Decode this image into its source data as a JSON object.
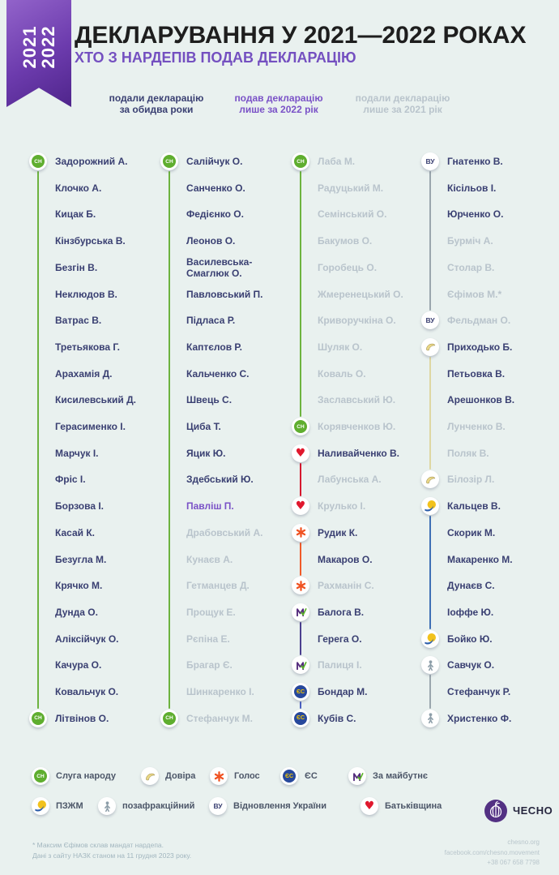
{
  "header": {
    "ribbon": "2021\n2022",
    "title": "ДЕКЛАРУВАННЯ У 2021—2022 РОКАХ",
    "subtitle": "ХТО З НАРДЕПІВ ПОДАВ ДЕКЛАРАЦІЮ"
  },
  "categories": [
    {
      "id": "both",
      "label": "подали декларацію\nза обидва роки",
      "color": "#3a4072"
    },
    {
      "id": "only2022",
      "label": "подав декларацію\nлише за 2022 рік",
      "color": "#7a52c7"
    },
    {
      "id": "only2021",
      "label": "подали декларацію\nлише за 2021 рік",
      "color": "#b9c4cc"
    }
  ],
  "status_colors": {
    "both": "#3a4072",
    "only2022": "#7a52c7",
    "only2021": "#b9c4cc"
  },
  "party_colors": {
    "sn": "#6db33f",
    "batkivshchyna": "#d6182e",
    "holos": "#f05a28",
    "maibutne": "#4b3f8f",
    "es": "#4a5fc1",
    "vu": "#9aa6ad",
    "dovira": "#ded7a2",
    "pzhm": "#3f6fb5",
    "nonfaction": "#9aa6ad"
  },
  "columns": [
    {
      "entries": [
        {
          "n": "Задорожний А.",
          "s": "both",
          "i": "sn"
        },
        {
          "n": "Клочко А.",
          "s": "both"
        },
        {
          "n": "Кицак Б.",
          "s": "both"
        },
        {
          "n": "Кінзбурська В.",
          "s": "both"
        },
        {
          "n": "Безгін В.",
          "s": "both"
        },
        {
          "n": "Неклюдов В.",
          "s": "both"
        },
        {
          "n": "Ватрас В.",
          "s": "both"
        },
        {
          "n": "Третьякова Г.",
          "s": "both"
        },
        {
          "n": "Арахамія Д.",
          "s": "both"
        },
        {
          "n": "Кисилевський Д.",
          "s": "both"
        },
        {
          "n": "Герасименко І.",
          "s": "both"
        },
        {
          "n": "Марчук І.",
          "s": "both"
        },
        {
          "n": "Фріс І.",
          "s": "both"
        },
        {
          "n": "Борзова І.",
          "s": "both"
        },
        {
          "n": "Касай К.",
          "s": "both"
        },
        {
          "n": "Безугла М.",
          "s": "both"
        },
        {
          "n": "Крячко М.",
          "s": "both"
        },
        {
          "n": "Дунда О.",
          "s": "both"
        },
        {
          "n": "Аліксійчук О.",
          "s": "both"
        },
        {
          "n": "Качура О.",
          "s": "both"
        },
        {
          "n": "Ковальчук О.",
          "s": "both"
        },
        {
          "n": "Літвінов О.",
          "s": "both",
          "i": "sn"
        }
      ],
      "segments": [
        {
          "party": "sn",
          "from": 0,
          "to": 21
        }
      ]
    },
    {
      "entries": [
        {
          "n": "Салійчук О.",
          "s": "both",
          "i": "sn"
        },
        {
          "n": "Санченко О.",
          "s": "both"
        },
        {
          "n": "Федієнко О.",
          "s": "both"
        },
        {
          "n": "Леонов О.",
          "s": "both"
        },
        {
          "n": "Василевська-\nСмаглюк О.",
          "s": "both"
        },
        {
          "n": "Павловський П.",
          "s": "both"
        },
        {
          "n": "Підласа Р.",
          "s": "both"
        },
        {
          "n": "Каптєлов Р.",
          "s": "both"
        },
        {
          "n": "Кальченко С.",
          "s": "both"
        },
        {
          "n": "Швець С.",
          "s": "both"
        },
        {
          "n": "Циба Т.",
          "s": "both"
        },
        {
          "n": "Яцик Ю.",
          "s": "both"
        },
        {
          "n": "Здебський Ю.",
          "s": "both"
        },
        {
          "n": "Павліш П.",
          "s": "only2022"
        },
        {
          "n": "Драбовський А.",
          "s": "only2021"
        },
        {
          "n": "Кунаєв А.",
          "s": "only2021"
        },
        {
          "n": "Гетманцев Д.",
          "s": "only2021"
        },
        {
          "n": "Прощук Е.",
          "s": "only2021"
        },
        {
          "n": "Рєпіна Е.",
          "s": "only2021"
        },
        {
          "n": "Брагар Є.",
          "s": "only2021"
        },
        {
          "n": "Шинкаренко І.",
          "s": "only2021"
        },
        {
          "n": "Стефанчук М.",
          "s": "only2021",
          "i": "sn"
        }
      ],
      "segments": [
        {
          "party": "sn",
          "from": 0,
          "to": 21
        }
      ]
    },
    {
      "entries": [
        {
          "n": "Лаба М.",
          "s": "only2021",
          "i": "sn"
        },
        {
          "n": "Радуцький М.",
          "s": "only2021"
        },
        {
          "n": "Семінський О.",
          "s": "only2021"
        },
        {
          "n": "Бакумов О.",
          "s": "only2021"
        },
        {
          "n": "Горобець О.",
          "s": "only2021"
        },
        {
          "n": "Жмеренецький О.",
          "s": "only2021"
        },
        {
          "n": "Криворучкіна О.",
          "s": "only2021"
        },
        {
          "n": "Шуляк О.",
          "s": "only2021"
        },
        {
          "n": "Коваль О.",
          "s": "only2021"
        },
        {
          "n": "Заславський Ю.",
          "s": "only2021"
        },
        {
          "n": "Корявченков Ю.",
          "s": "only2021",
          "i": "sn"
        },
        {
          "n": "Наливайченко В.",
          "s": "both",
          "i": "batkivshchyna"
        },
        {
          "n": "Лабунська А.",
          "s": "only2021"
        },
        {
          "n": "Крулько І.",
          "s": "only2021",
          "i": "batkivshchyna"
        },
        {
          "n": "Рудик К.",
          "s": "both",
          "i": "holos"
        },
        {
          "n": "Макаров О.",
          "s": "both"
        },
        {
          "n": "Рахманін С.",
          "s": "only2021",
          "i": "holos"
        },
        {
          "n": "Балога В.",
          "s": "both",
          "i": "maibutne"
        },
        {
          "n": "Герега О.",
          "s": "both"
        },
        {
          "n": "Палиця І.",
          "s": "only2021",
          "i": "maibutne"
        },
        {
          "n": "Бондар М.",
          "s": "both",
          "i": "es"
        },
        {
          "n": "Кубів С.",
          "s": "both",
          "i": "es"
        }
      ],
      "segments": [
        {
          "party": "sn",
          "from": 0,
          "to": 10
        },
        {
          "party": "batkivshchyna",
          "from": 11,
          "to": 13
        },
        {
          "party": "holos",
          "from": 14,
          "to": 16
        },
        {
          "party": "maibutne",
          "from": 17,
          "to": 19
        },
        {
          "party": "es",
          "from": 20,
          "to": 21
        }
      ]
    },
    {
      "entries": [
        {
          "n": "Гнатенко В.",
          "s": "both",
          "i": "vu"
        },
        {
          "n": "Кісільов І.",
          "s": "both"
        },
        {
          "n": "Юрченко О.",
          "s": "both"
        },
        {
          "n": "Бурміч А.",
          "s": "only2021"
        },
        {
          "n": "Столар В.",
          "s": "only2021"
        },
        {
          "n": "Єфімов М.*",
          "s": "only2021"
        },
        {
          "n": "Фельдман О.",
          "s": "only2021",
          "i": "vu"
        },
        {
          "n": "Приходько Б.",
          "s": "both",
          "i": "dovira"
        },
        {
          "n": "Петьовка В.",
          "s": "both"
        },
        {
          "n": "Арешонков В.",
          "s": "both"
        },
        {
          "n": "Лунченко В.",
          "s": "only2021"
        },
        {
          "n": "Поляк В.",
          "s": "only2021"
        },
        {
          "n": "Білозір Л.",
          "s": "only2021",
          "i": "dovira"
        },
        {
          "n": "Кальцев В.",
          "s": "both",
          "i": "pzhm"
        },
        {
          "n": "Скорик М.",
          "s": "both"
        },
        {
          "n": "Макаренко М.",
          "s": "both"
        },
        {
          "n": "Дунаєв С.",
          "s": "both"
        },
        {
          "n": "Іоффе Ю.",
          "s": "both"
        },
        {
          "n": "Бойко Ю.",
          "s": "both",
          "i": "pzhm"
        },
        {
          "n": "Савчук О.",
          "s": "both",
          "i": "nonfaction"
        },
        {
          "n": "Стефанчук Р.",
          "s": "both"
        },
        {
          "n": "Христенко Ф.",
          "s": "both",
          "i": "nonfaction"
        }
      ],
      "segments": [
        {
          "party": "vu",
          "from": 0,
          "to": 6
        },
        {
          "party": "dovira",
          "from": 7,
          "to": 12
        },
        {
          "party": "pzhm",
          "from": 13,
          "to": 18
        },
        {
          "party": "nonfaction",
          "from": 19,
          "to": 21
        }
      ]
    }
  ],
  "legend": {
    "rows": [
      [
        {
          "id": "sn",
          "label": "Слуга народу"
        },
        {
          "id": "dovira",
          "label": "Довіра"
        },
        {
          "id": "holos",
          "label": "Голос"
        },
        {
          "id": "es",
          "label": "ЄС"
        },
        {
          "id": "maibutne",
          "label": "За майбутнє"
        }
      ],
      [
        {
          "id": "pzhm",
          "label": "ПЗЖМ"
        },
        {
          "id": "nonfaction",
          "label": "позафракційний"
        },
        {
          "id": "vu",
          "label": "Відновлення України"
        },
        {
          "id": "batkivshchyna",
          "label": "Батьківщина"
        }
      ]
    ]
  },
  "footnote": {
    "line1": "* Максим Єфімов склав мандат нардепа.",
    "line2": "Дані з сайту НАЗК станом на 11 грудня 2023 року."
  },
  "brand": {
    "name": "ЧЕСНО",
    "website": "chesno.org",
    "facebook": "facebook.com/chesno.movement",
    "phone": "+38 067 658 7798"
  }
}
